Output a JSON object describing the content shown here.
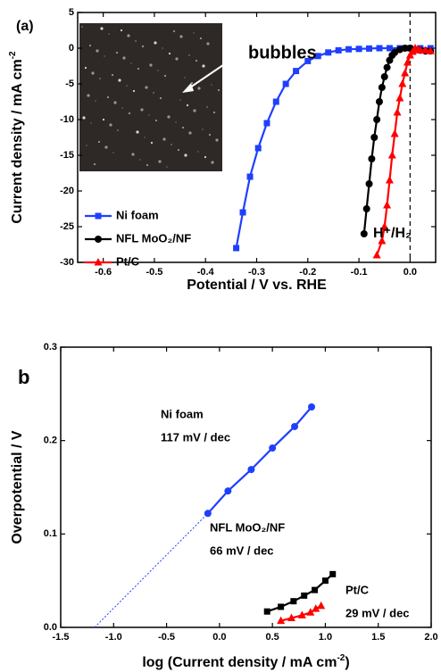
{
  "chart_data": [
    {
      "type": "line",
      "panel_label": "(a)",
      "x_label": "Potential / V vs. RHE",
      "y_label_parts": [
        "Current density / mA cm",
        "-2"
      ],
      "xlim": [
        -0.65,
        0.05
      ],
      "ylim": [
        -30,
        5
      ],
      "xticks": [
        -0.6,
        -0.5,
        -0.4,
        -0.3,
        -0.2,
        -0.1,
        {
          "value": 0,
          "label": "0.0"
        }
      ],
      "yticks": [
        5,
        0,
        -5,
        -10,
        -15,
        -20,
        -25,
        -30
      ],
      "vline": 0,
      "annotations": [
        "bubbles",
        "H⁺/H₂"
      ],
      "series": [
        {
          "name": "Ni foam",
          "color": "#1f3fff",
          "marker": "square",
          "x": [
            -0.34,
            -0.327,
            -0.313,
            -0.297,
            -0.28,
            -0.262,
            -0.243,
            -0.223,
            -0.2,
            -0.18,
            -0.16,
            -0.14,
            -0.12,
            -0.1,
            -0.08,
            -0.06,
            -0.04,
            -0.02,
            0,
            0.02,
            0.04
          ],
          "values": [
            -28,
            -23,
            -18,
            -14,
            -10.5,
            -7.5,
            -5,
            -3.2,
            -1.8,
            -1.1,
            -0.6,
            -0.3,
            -0.15,
            -0.1,
            -0.05,
            0,
            0,
            0,
            0,
            0,
            0
          ]
        },
        {
          "name": "NFL MoO₂/NF",
          "color": "#000000",
          "marker": "circle",
          "x": [
            -0.09,
            -0.085,
            -0.08,
            -0.075,
            -0.07,
            -0.065,
            -0.06,
            -0.055,
            -0.05,
            -0.045,
            -0.04,
            -0.035,
            -0.03,
            -0.02,
            -0.01,
            0,
            0.01,
            0.02,
            0.03,
            0.04
          ],
          "values": [
            -26,
            -22.5,
            -19,
            -15.5,
            -12.5,
            -10,
            -7.5,
            -5.5,
            -4,
            -2.7,
            -1.7,
            -1,
            -0.6,
            -0.2,
            0,
            0,
            -0.2,
            -0.3,
            -0.4,
            -0.4
          ]
        },
        {
          "name": "Pt/C",
          "color": "#ff0000",
          "marker": "triangle",
          "x": [
            -0.065,
            -0.055,
            -0.05,
            -0.045,
            -0.04,
            -0.035,
            -0.03,
            -0.025,
            -0.02,
            -0.015,
            -0.01,
            -0.005,
            0,
            0.005,
            0.01,
            0.015,
            0.02,
            0.03,
            0.04
          ],
          "values": [
            -29,
            -27,
            -25,
            -22,
            -18.5,
            -15,
            -12,
            -9,
            -7,
            -5,
            -3.5,
            -2,
            -1,
            -0.5,
            0,
            -0.2,
            -0.3,
            -0.3,
            -0.4
          ]
        }
      ]
    },
    {
      "type": "line",
      "panel_label": "b",
      "x_label_parts": [
        "log (Current density / mA cm",
        "-2",
        ")"
      ],
      "y_label": "Overpotential / V",
      "xlim": [
        -1.5,
        2.0
      ],
      "ylim": [
        0,
        0.3
      ],
      "xticks": [
        -1.5,
        {
          "value": -1,
          "label": "-1.0"
        },
        -0.5,
        {
          "value": 0,
          "label": "0.0"
        },
        0.5,
        {
          "value": 1,
          "label": "1.0"
        },
        1.5,
        {
          "value": 2,
          "label": "2.0"
        }
      ],
      "yticks": [
        {
          "value": 0,
          "label": "0.0"
        },
        0.1,
        0.2,
        0.3
      ],
      "series": [
        {
          "name": "Ni foam",
          "slope_label": "117 mV / dec",
          "color": "#1f3fff",
          "marker": "circle",
          "x": [
            -0.11,
            0.08,
            0.3,
            0.5,
            0.71,
            0.87
          ],
          "values": [
            0.122,
            0.146,
            0.169,
            0.192,
            0.215,
            0.236
          ],
          "extrapolation_x": [
            -1.18,
            -0.11
          ],
          "extrapolation_values": [
            0,
            0.122
          ]
        },
        {
          "name": "NFL MoO₂/NF",
          "slope_label": "66 mV / dec",
          "color": "#000000",
          "marker": "square",
          "x": [
            0.45,
            0.58,
            0.7,
            0.8,
            0.9,
            1.0,
            1.07
          ],
          "values": [
            0.017,
            0.022,
            0.028,
            0.034,
            0.04,
            0.05,
            0.057
          ]
        },
        {
          "name": "Pt/C",
          "slope_label": "29 mV / dec",
          "color": "#ff0000",
          "marker": "triangle",
          "x": [
            0.58,
            0.68,
            0.78,
            0.86,
            0.91,
            0.96
          ],
          "values": [
            0.007,
            0.01,
            0.013,
            0.016,
            0.02,
            0.023
          ]
        }
      ]
    }
  ]
}
